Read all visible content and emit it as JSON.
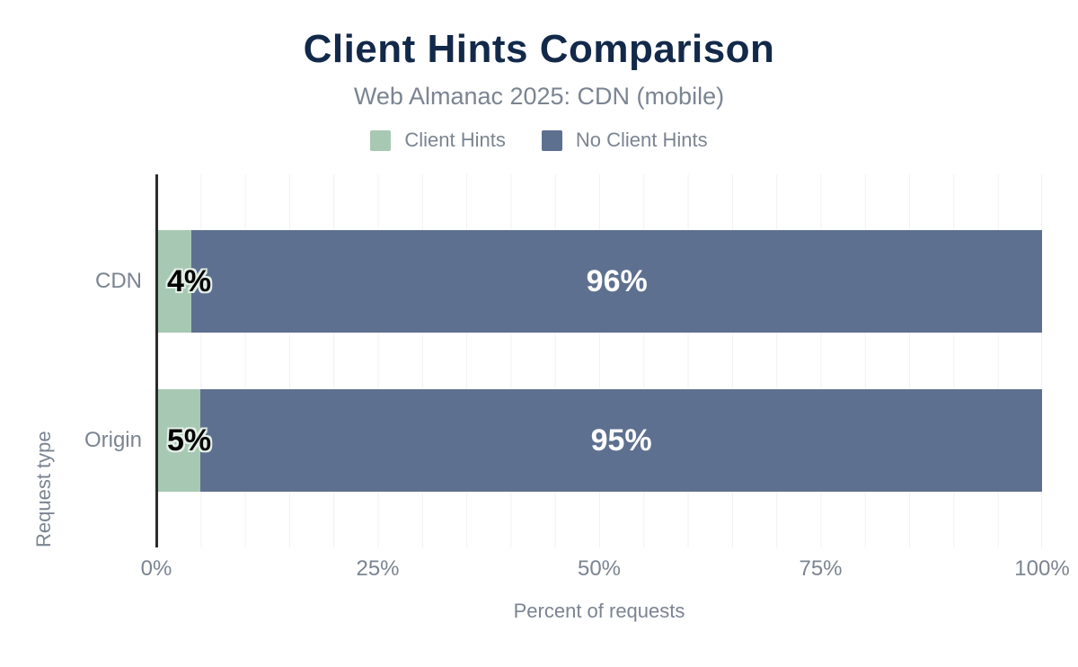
{
  "chart_data": {
    "type": "bar",
    "orientation": "horizontal-stacked",
    "title": "Client Hints Comparison",
    "subtitle": "Web Almanac 2025: CDN (mobile)",
    "xlabel": "Percent of requests",
    "ylabel": "Request type",
    "xlim": [
      0,
      100
    ],
    "x_ticks": [
      {
        "value": 0,
        "label": "0%"
      },
      {
        "value": 25,
        "label": "25%"
      },
      {
        "value": 50,
        "label": "50%"
      },
      {
        "value": 75,
        "label": "75%"
      },
      {
        "value": 100,
        "label": "100%"
      }
    ],
    "grid": "on",
    "grid_interval_percent": 5,
    "legend_position": "top",
    "categories": [
      "CDN",
      "Origin"
    ],
    "series": [
      {
        "name": "Client Hints",
        "color": "#a7c9b4",
        "values": [
          4,
          5
        ],
        "labels": [
          "4%",
          "5%"
        ]
      },
      {
        "name": "No Client Hints",
        "color": "#5e7090",
        "values": [
          96,
          95
        ],
        "labels": [
          "96%",
          "95%"
        ]
      }
    ]
  },
  "colors": {
    "background": "#ffffff",
    "title": "#12294a",
    "muted_text": "#7b8492",
    "axis_line": "#2b2b2b",
    "gridline": "#f1f1f1",
    "value_label_dark": "#000000",
    "value_label_light": "#ffffff",
    "value_label_outline": "#e3eee6"
  }
}
